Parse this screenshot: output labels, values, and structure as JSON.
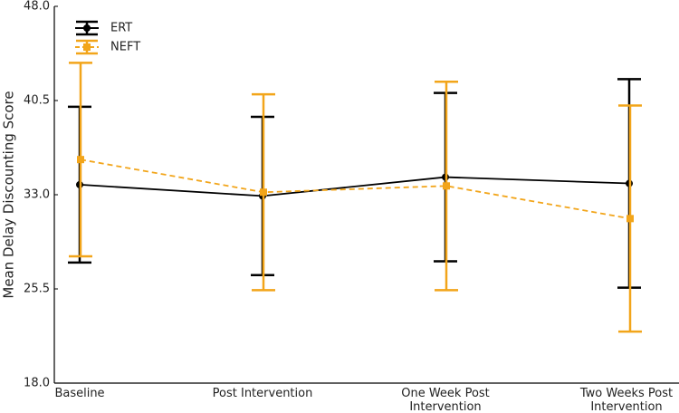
{
  "chart_data": {
    "type": "line",
    "categories": [
      "Baseline",
      "Post Intervention",
      "One Week Post Intervention",
      "Two Weeks Post Intervention"
    ],
    "y_label": "Mean Delay Discounting Score",
    "ylim": [
      18,
      48
    ],
    "yticks": [
      {
        "value": 18,
        "label": "18.0"
      },
      25.5,
      {
        "value": 33,
        "label": "33.0"
      },
      40.5,
      {
        "value": 48,
        "label": "48.0"
      }
    ],
    "grid": false,
    "legend": "upper-left",
    "series": [
      {
        "name": "ERT",
        "color": "#000000",
        "dashed": false,
        "values": [
          33.8,
          32.9,
          34.4,
          33.9
        ],
        "errors": [
          6.2,
          6.3,
          6.7,
          8.3
        ]
      },
      {
        "name": "NEFT",
        "color": "#f2a51a",
        "dashed": true,
        "values": [
          35.8,
          33.2,
          33.7,
          31.1
        ],
        "errors": [
          7.7,
          7.8,
          8.3,
          9.0
        ]
      }
    ]
  }
}
